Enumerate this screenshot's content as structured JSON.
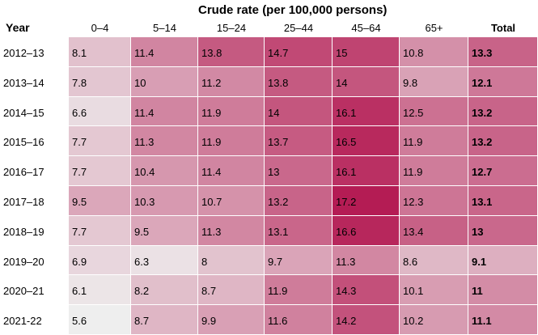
{
  "chart_data": {
    "type": "heatmap",
    "title": "Crude rate (per 100,000 persons)",
    "row_header": "Year",
    "columns": [
      "0–4",
      "5–14",
      "15–24",
      "25–44",
      "45–64",
      "65+",
      "Total"
    ],
    "rows": [
      "2012–13",
      "2013–14",
      "2014–15",
      "2015–16",
      "2016–17",
      "2017–18",
      "2018–19",
      "2019–20",
      "2020–21",
      "2021-22"
    ],
    "values": [
      [
        8.1,
        11.4,
        13.8,
        14.7,
        15,
        10.8,
        13.3
      ],
      [
        7.8,
        10,
        11.2,
        13.8,
        14,
        9.8,
        12.1
      ],
      [
        6.6,
        11.4,
        11.9,
        14,
        16.1,
        12.5,
        13.2
      ],
      [
        7.7,
        11.3,
        11.9,
        13.7,
        16.5,
        11.9,
        13.2
      ],
      [
        7.7,
        10.4,
        11.4,
        13,
        16.1,
        11.9,
        12.7
      ],
      [
        9.5,
        10.3,
        10.7,
        13.2,
        17.2,
        12.3,
        13.1
      ],
      [
        7.7,
        9.5,
        11.3,
        13.1,
        16.6,
        13.4,
        13
      ],
      [
        6.9,
        6.3,
        8,
        9.7,
        11.3,
        8.6,
        9.1
      ],
      [
        6.1,
        8.2,
        8.7,
        11.9,
        14.3,
        10.1,
        11
      ],
      [
        5.6,
        8.7,
        9.9,
        11.6,
        14.2,
        10.2,
        11.1
      ]
    ],
    "color_scale": {
      "min_value": 5.6,
      "max_value": 17.2,
      "low_color": "#eeeeee",
      "high_color": "#b41c54"
    }
  }
}
